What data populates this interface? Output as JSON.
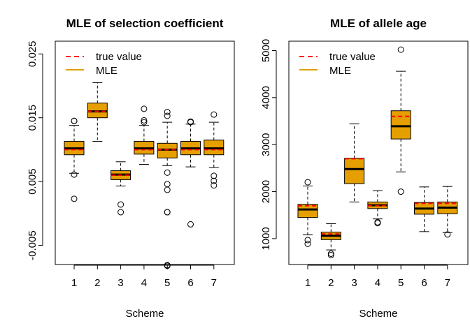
{
  "chart_data": [
    {
      "type": "box",
      "title": "MLE of selection coefficient",
      "xlabel": "Scheme",
      "ylabel": "",
      "categories": [
        "1",
        "2",
        "3",
        "4",
        "5",
        "6",
        "7"
      ],
      "ylim": [
        -0.008,
        0.027
      ],
      "yticks": [
        -0.005,
        0.005,
        0.015,
        0.025
      ],
      "yticklabels": [
        "-0.005",
        "0.005",
        "0.015",
        "0.025"
      ],
      "legend": {
        "position": "top-left",
        "entries": [
          {
            "label": "true value",
            "color": "#ff0000",
            "style": "dashed"
          },
          {
            "label": "MLE",
            "color": "#e69f00",
            "style": "solid"
          }
        ]
      },
      "true_values": [
        0.01,
        0.016,
        0.006,
        0.01,
        0.01,
        0.01,
        0.01
      ],
      "boxes": [
        {
          "whisker_low": 0.0063,
          "q1": 0.0092,
          "median": 0.0102,
          "q3": 0.0113,
          "whisker_high": 0.0138,
          "outliers": [
            0.0145,
            0.0145,
            0.0061,
            0.0023
          ]
        },
        {
          "whisker_low": 0.0113,
          "q1": 0.015,
          "median": 0.016,
          "q3": 0.0173,
          "whisker_high": 0.0205,
          "outliers": []
        },
        {
          "whisker_low": 0.0043,
          "q1": 0.0053,
          "median": 0.0061,
          "q3": 0.0067,
          "whisker_high": 0.0081,
          "outliers": [
            0.0014,
            0.0002
          ]
        },
        {
          "whisker_low": 0.0077,
          "q1": 0.0093,
          "median": 0.0102,
          "q3": 0.0113,
          "whisker_high": 0.0138,
          "outliers": [
            0.0164,
            0.0146,
            0.0143
          ]
        },
        {
          "whisker_low": 0.0075,
          "q1": 0.0087,
          "median": 0.01,
          "q3": 0.011,
          "whisker_high": 0.0143,
          "outliers": [
            0.0159,
            0.0153,
            0.0064,
            0.0046,
            0.0037,
            0.0002,
            0.0002,
            -0.0081,
            -0.0082
          ]
        },
        {
          "whisker_low": 0.0073,
          "q1": 0.0092,
          "median": 0.0102,
          "q3": 0.0113,
          "whisker_high": 0.014,
          "outliers": [
            0.0144,
            0.0143,
            -0.0017
          ]
        },
        {
          "whisker_low": 0.0072,
          "q1": 0.0092,
          "median": 0.0102,
          "q3": 0.0115,
          "whisker_high": 0.0143,
          "outliers": [
            0.0155,
            0.0059,
            0.0051,
            0.0044
          ]
        }
      ]
    },
    {
      "type": "box",
      "title": "MLE of allele age",
      "xlabel": "Scheme",
      "ylabel": "",
      "categories": [
        "1",
        "2",
        "3",
        "4",
        "5",
        "6",
        "7"
      ],
      "ylim": [
        450,
        5200
      ],
      "yticks": [
        1000,
        2000,
        3000,
        4000,
        5000
      ],
      "yticklabels": [
        "1000",
        "2000",
        "3000",
        "4000",
        "5000"
      ],
      "legend": {
        "position": "top-left",
        "entries": [
          {
            "label": "true value",
            "color": "#ff0000",
            "style": "dashed"
          },
          {
            "label": "MLE",
            "color": "#e69f00",
            "style": "solid"
          }
        ]
      },
      "true_values": [
        1700,
        1100,
        2700,
        1700,
        3600,
        1750,
        1750
      ],
      "boxes": [
        {
          "whisker_low": 1080,
          "q1": 1450,
          "median": 1620,
          "q3": 1730,
          "whisker_high": 2120,
          "outliers": [
            2200,
            970,
            890
          ]
        },
        {
          "whisker_low": 760,
          "q1": 980,
          "median": 1060,
          "q3": 1140,
          "whisker_high": 1320,
          "outliers": [
            680,
            650
          ]
        },
        {
          "whisker_low": 1780,
          "q1": 2170,
          "median": 2480,
          "q3": 2710,
          "whisker_high": 3440,
          "outliers": []
        },
        {
          "whisker_low": 1420,
          "q1": 1640,
          "median": 1710,
          "q3": 1780,
          "whisker_high": 2020,
          "outliers": [
            1350,
            1330
          ]
        },
        {
          "whisker_low": 2420,
          "q1": 3120,
          "median": 3390,
          "q3": 3720,
          "whisker_high": 4560,
          "outliers": [
            5020,
            2000
          ]
        },
        {
          "whisker_low": 1150,
          "q1": 1520,
          "median": 1640,
          "q3": 1770,
          "whisker_high": 2100,
          "outliers": []
        },
        {
          "whisker_low": 1130,
          "q1": 1530,
          "median": 1660,
          "q3": 1780,
          "whisker_high": 2110,
          "outliers": [
            1090
          ]
        }
      ]
    }
  ]
}
